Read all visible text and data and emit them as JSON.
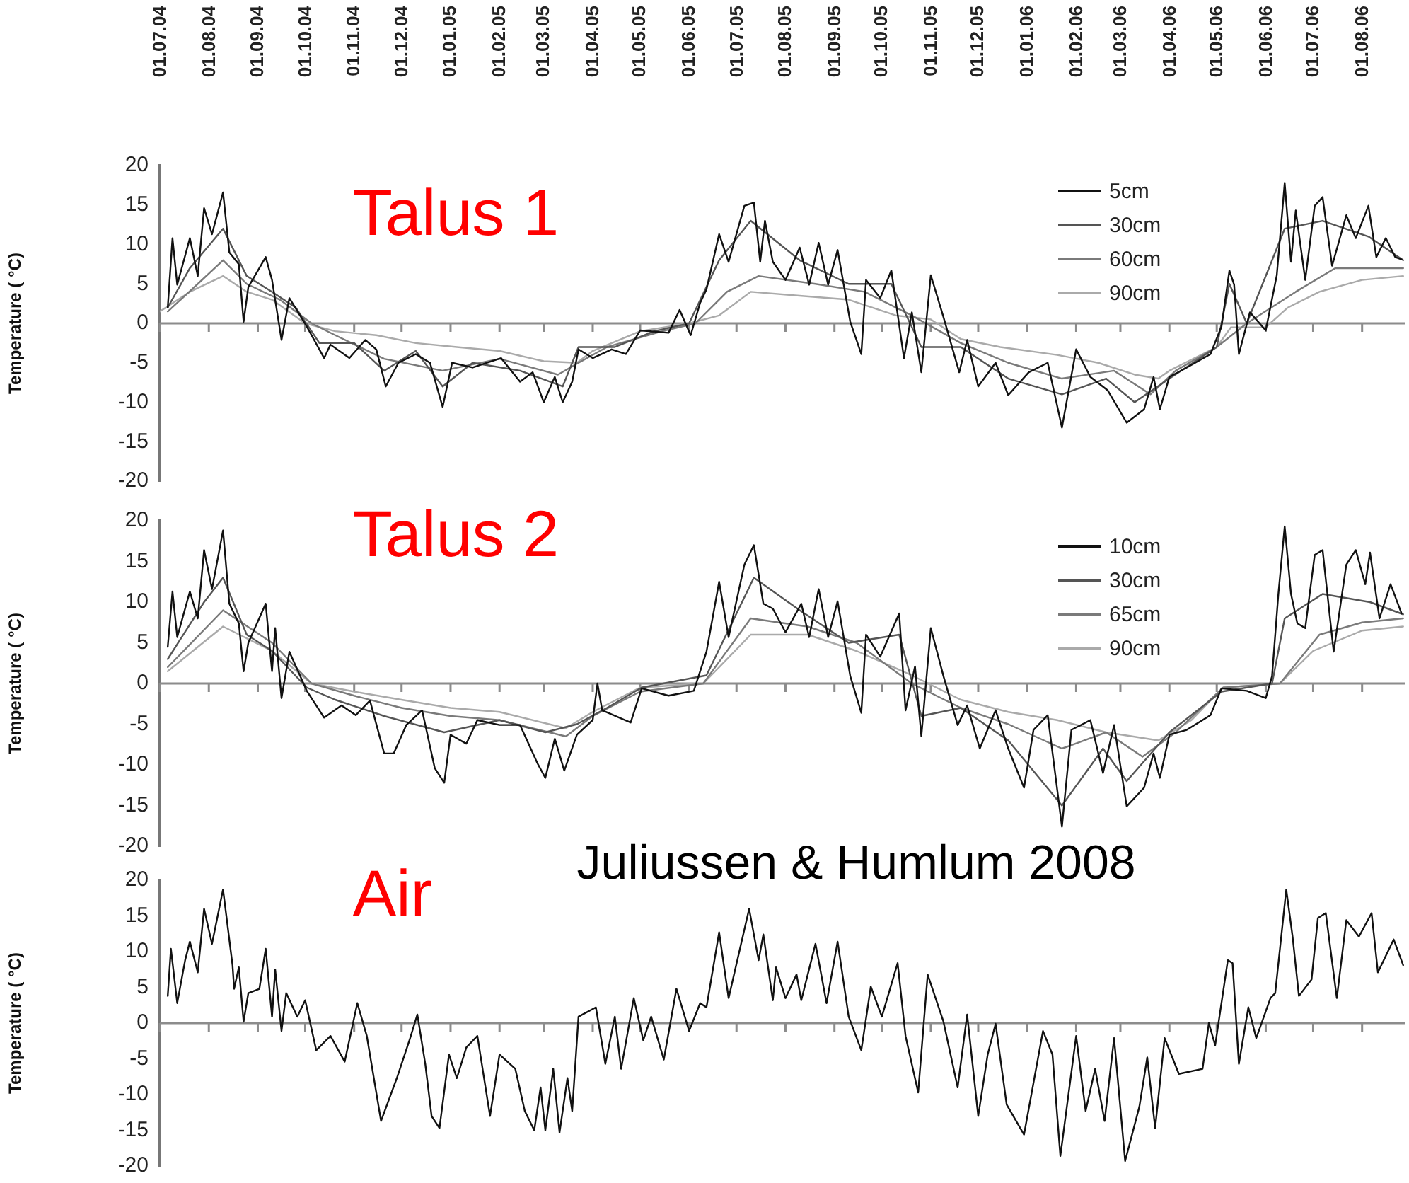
{
  "chart_data": [
    {
      "type": "line",
      "title": "Talus 1",
      "ylabel": "Temperature ( °C)",
      "xlim": [
        "2004-07-01",
        "2006-08-28"
      ],
      "ylim": [
        -20,
        20
      ],
      "yticks": [
        -20,
        -15,
        -10,
        -5,
        0,
        5,
        10,
        15,
        20
      ],
      "xticks": [
        {
          "value": "2004-07-01",
          "label": "01.07.04"
        },
        {
          "value": "2004-08-01",
          "label": "01.08.04"
        },
        {
          "value": "2004-09-01",
          "label": "01.09.04"
        },
        {
          "value": "2004-10-01",
          "label": "01.10.04"
        },
        {
          "value": "2004-11-01",
          "label": "01.11.04"
        },
        {
          "value": "2004-12-01",
          "label": "01.12.04"
        },
        {
          "value": "2005-01-01",
          "label": "01.01.05"
        },
        {
          "value": "2005-02-01",
          "label": "01.02.05"
        },
        {
          "value": "2005-03-01",
          "label": "01.03.05"
        },
        {
          "value": "2005-04-01",
          "label": "01.04.05"
        },
        {
          "value": "2005-05-01",
          "label": "01.05.05"
        },
        {
          "value": "2005-06-01",
          "label": "01.06.05"
        },
        {
          "value": "2005-07-01",
          "label": "01.07.05"
        },
        {
          "value": "2005-08-01",
          "label": "01.08.05"
        },
        {
          "value": "2005-09-01",
          "label": "01.09.05"
        },
        {
          "value": "2005-10-01",
          "label": "01.10.05"
        },
        {
          "value": "2005-11-01",
          "label": "01.11.05"
        },
        {
          "value": "2005-12-01",
          "label": "01.12.05"
        },
        {
          "value": "2006-01-01",
          "label": "01.01.06"
        },
        {
          "value": "2006-02-01",
          "label": "01.02.06"
        },
        {
          "value": "2006-03-01",
          "label": "01.03.06"
        },
        {
          "value": "2006-04-01",
          "label": "01.04.06"
        },
        {
          "value": "2006-05-01",
          "label": "01.05.06"
        },
        {
          "value": "2006-06-01",
          "label": "01.06.06"
        },
        {
          "value": "2006-07-01",
          "label": "01.07.06"
        },
        {
          "value": "2006-08-01",
          "label": "01.08.06"
        }
      ],
      "legend": "top right",
      "ref_lines": [
        {
          "axis": "y",
          "value": 0
        }
      ],
      "series": [
        {
          "name": "5cm",
          "color": "#111111",
          "x": [
            "2004-07-06",
            "2004-07-09",
            "2004-07-12",
            "2004-07-20",
            "2004-07-25",
            "2004-07-29",
            "2004-08-03",
            "2004-08-10",
            "2004-08-14",
            "2004-08-20",
            "2004-08-23",
            "2004-08-26",
            "2004-09-06",
            "2004-09-10",
            "2004-09-16",
            "2004-09-21",
            "2004-10-02",
            "2004-10-13",
            "2004-10-17",
            "2004-10-29",
            "2004-11-08",
            "2004-11-15",
            "2004-11-21",
            "2004-11-29",
            "2004-12-10",
            "2004-12-19",
            "2004-12-27",
            "2005-01-02",
            "2005-01-15",
            "2005-02-02",
            "2005-02-14",
            "2005-02-22",
            "2005-03-01",
            "2005-03-08",
            "2005-03-13",
            "2005-03-19",
            "2005-03-23",
            "2005-04-01",
            "2005-04-13",
            "2005-04-22",
            "2005-05-01",
            "2005-05-19",
            "2005-05-26",
            "2005-06-02",
            "2005-06-08",
            "2005-06-12",
            "2005-06-20",
            "2005-06-26",
            "2005-07-06",
            "2005-07-12",
            "2005-07-16",
            "2005-07-19",
            "2005-07-24",
            "2005-08-01",
            "2005-08-10",
            "2005-08-16",
            "2005-08-22",
            "2005-08-28",
            "2005-09-03",
            "2005-09-11",
            "2005-09-18",
            "2005-09-21",
            "2005-09-30",
            "2005-10-07",
            "2005-10-15",
            "2005-10-20",
            "2005-10-26",
            "2005-11-01",
            "2005-11-09",
            "2005-11-19",
            "2005-11-24",
            "2005-12-01",
            "2005-12-12",
            "2005-12-20",
            "2006-01-02",
            "2006-01-14",
            "2006-01-23",
            "2006-02-01",
            "2006-02-10",
            "2006-02-21",
            "2006-03-05",
            "2006-03-16",
            "2006-03-22",
            "2006-03-26",
            "2006-04-01",
            "2006-04-12",
            "2006-04-27",
            "2006-05-04",
            "2006-05-09",
            "2006-05-12",
            "2006-05-15",
            "2006-05-22",
            "2006-06-01",
            "2006-06-08",
            "2006-06-13",
            "2006-06-17",
            "2006-06-20",
            "2006-06-26",
            "2006-07-02",
            "2006-07-07",
            "2006-07-13",
            "2006-07-22",
            "2006-07-28",
            "2006-08-05",
            "2006-08-10",
            "2006-08-16",
            "2006-08-22",
            "2006-08-26"
          ],
          "values": [
            2,
            10.8,
            4.9,
            10.8,
            6,
            14.6,
            11.3,
            16.6,
            9,
            7.5,
            0.2,
            4.6,
            8.4,
            5.5,
            -2.1,
            3.2,
            -0.4,
            -4.4,
            -2.7,
            -4.4,
            -2.1,
            -3.3,
            -8,
            -5,
            -3.9,
            -5,
            -10.6,
            -5,
            -5.6,
            -4.4,
            -7.4,
            -6.2,
            -10,
            -6.8,
            -10,
            -7.4,
            -3.3,
            -4.4,
            -3.3,
            -3.9,
            -0.9,
            -1.2,
            1.7,
            -1.5,
            2.6,
            4.3,
            11.3,
            7.8,
            14.9,
            15.3,
            7.8,
            13,
            7.8,
            5.5,
            9.6,
            4.9,
            10.2,
            4.9,
            9.3,
            0.2,
            -3.9,
            5.5,
            3.2,
            6.7,
            -4.4,
            1.4,
            -6.2,
            6.1,
            0.8,
            -6.2,
            -2.1,
            -8,
            -5,
            -9.1,
            -6.2,
            -5,
            -13.2,
            -3.3,
            -6.8,
            -8.5,
            -12.6,
            -10.9,
            -6.8,
            -10.9,
            -6.8,
            -5.6,
            -3.9,
            -0.4,
            6.7,
            4.9,
            -3.9,
            1.4,
            -0.9,
            6.1,
            17.8,
            7.8,
            14.3,
            5.5,
            14.9,
            16,
            7.3,
            13.7,
            10.8,
            14.9,
            8.4,
            10.8,
            8.4,
            8.1
          ]
        },
        {
          "name": "30cm",
          "color": "#555555",
          "x": [
            "2004-07-06",
            "2004-07-20",
            "2004-08-10",
            "2004-08-25",
            "2004-09-10",
            "2004-09-25",
            "2004-10-10",
            "2004-11-01",
            "2004-11-20",
            "2004-12-10",
            "2004-12-27",
            "2005-01-15",
            "2005-02-14",
            "2005-03-13",
            "2005-03-23",
            "2005-04-15",
            "2005-05-10",
            "2005-06-01",
            "2005-06-20",
            "2005-07-10",
            "2005-08-10",
            "2005-09-10",
            "2005-10-07",
            "2005-10-26",
            "2005-11-20",
            "2005-12-20",
            "2006-01-23",
            "2006-02-20",
            "2006-03-10",
            "2006-04-01",
            "2006-05-01",
            "2006-05-09",
            "2006-05-20",
            "2006-06-13",
            "2006-07-07",
            "2006-08-05",
            "2006-08-27"
          ],
          "values": [
            2,
            7,
            12,
            6,
            4,
            2,
            -2.5,
            -2.5,
            -6,
            -3.5,
            -8,
            -5,
            -6,
            -8,
            -3,
            -3,
            -1,
            0,
            8,
            13,
            8,
            5,
            5,
            -3,
            -3,
            -7,
            -9,
            -7,
            -10,
            -7,
            -3,
            5,
            0,
            12,
            13,
            11,
            8
          ]
        },
        {
          "name": "60cm",
          "color": "#7a7a7a",
          "x": [
            "2004-07-06",
            "2004-07-25",
            "2004-08-10",
            "2004-08-25",
            "2004-09-15",
            "2004-10-05",
            "2004-10-20",
            "2004-11-20",
            "2004-12-27",
            "2005-02-01",
            "2005-03-10",
            "2005-03-23",
            "2005-04-10",
            "2005-05-15",
            "2005-06-05",
            "2005-06-25",
            "2005-07-15",
            "2005-08-20",
            "2005-09-20",
            "2005-10-20",
            "2005-11-20",
            "2005-12-20",
            "2006-01-23",
            "2006-02-25",
            "2006-03-20",
            "2006-04-05",
            "2006-05-01",
            "2006-05-20",
            "2006-06-20",
            "2006-07-15",
            "2006-08-27"
          ],
          "values": [
            1.5,
            5,
            8,
            5,
            3,
            0,
            -1.5,
            -4.5,
            -6,
            -4.5,
            -6.5,
            -5,
            -3,
            -1,
            0,
            4,
            6,
            5,
            4,
            1,
            -2.5,
            -5,
            -7,
            -6,
            -9,
            -6,
            -3,
            0,
            4,
            7,
            7
          ]
        },
        {
          "name": "90cm",
          "color": "#aaaaaa",
          "x": [
            "2004-07-01",
            "2004-07-20",
            "2004-08-10",
            "2004-08-25",
            "2004-09-10",
            "2004-10-01",
            "2004-10-20",
            "2004-11-15",
            "2004-12-10",
            "2005-01-05",
            "2005-02-01",
            "2005-03-01",
            "2005-03-22",
            "2005-04-01",
            "2005-05-01",
            "2005-06-01",
            "2005-06-20",
            "2005-07-10",
            "2005-08-10",
            "2005-09-10",
            "2005-10-10",
            "2005-11-01",
            "2005-11-20",
            "2005-12-15",
            "2006-01-20",
            "2006-02-15",
            "2006-03-10",
            "2006-03-25",
            "2006-04-01",
            "2006-05-01",
            "2006-05-10",
            "2006-06-01",
            "2006-06-15",
            "2006-07-05",
            "2006-08-01",
            "2006-08-27"
          ],
          "values": [
            1.5,
            4,
            6,
            4,
            3,
            0,
            -1,
            -1.5,
            -2.5,
            -3,
            -3.5,
            -4.8,
            -5,
            -3.5,
            -1,
            0,
            1,
            4,
            3.5,
            3,
            1,
            0.5,
            -2,
            -3,
            -4,
            -5,
            -6.5,
            -7,
            -6,
            -3,
            -0.5,
            -0.5,
            2,
            4,
            5.5,
            6
          ]
        }
      ]
    },
    {
      "type": "line",
      "title": "Talus 2",
      "ylabel": "Temperature ( °C)",
      "xlim": [
        "2004-07-01",
        "2006-08-28"
      ],
      "ylim": [
        -20,
        20
      ],
      "yticks": [
        -20,
        -15,
        -10,
        -5,
        0,
        5,
        10,
        15,
        20
      ],
      "xticks": [
        {
          "value": "2004-07-01",
          "label": null
        },
        {
          "value": "2004-08-01",
          "label": null
        },
        {
          "value": "2004-09-01",
          "label": null
        },
        {
          "value": "2004-10-01",
          "label": null
        },
        {
          "value": "2004-11-01",
          "label": null
        },
        {
          "value": "2004-12-01",
          "label": null
        },
        {
          "value": "2005-01-01",
          "label": null
        },
        {
          "value": "2005-02-01",
          "label": null
        },
        {
          "value": "2005-03-01",
          "label": null
        },
        {
          "value": "2005-04-01",
          "label": null
        },
        {
          "value": "2005-05-01",
          "label": null
        },
        {
          "value": "2005-06-01",
          "label": null
        },
        {
          "value": "2005-07-01",
          "label": null
        },
        {
          "value": "2005-08-01",
          "label": null
        },
        {
          "value": "2005-09-01",
          "label": null
        },
        {
          "value": "2005-10-01",
          "label": null
        },
        {
          "value": "2005-11-01",
          "label": null
        },
        {
          "value": "2005-12-01",
          "label": null
        },
        {
          "value": "2006-01-01",
          "label": null
        },
        {
          "value": "2006-02-01",
          "label": null
        },
        {
          "value": "2006-03-01",
          "label": null
        },
        {
          "value": "2006-04-01",
          "label": null
        },
        {
          "value": "2006-05-01",
          "label": null
        },
        {
          "value": "2006-06-01",
          "label": null
        },
        {
          "value": "2006-07-01",
          "label": null
        },
        {
          "value": "2006-08-01",
          "label": null
        }
      ],
      "tick_labels": "y",
      "legend": "top right",
      "ref_lines": [
        {
          "axis": "y",
          "value": 0
        }
      ],
      "series": [
        {
          "name": "10cm",
          "color": "#111111",
          "x": [
            "2004-07-06",
            "2004-07-09",
            "2004-07-12",
            "2004-07-20",
            "2004-07-25",
            "2004-07-29",
            "2004-08-03",
            "2004-08-10",
            "2004-08-14",
            "2004-08-20",
            "2004-08-23",
            "2004-08-26",
            "2004-09-06",
            "2004-09-10",
            "2004-09-12",
            "2004-09-16",
            "2004-09-21",
            "2004-10-02",
            "2004-10-13",
            "2004-10-24",
            "2004-11-02",
            "2004-11-11",
            "2004-11-20",
            "2004-11-26",
            "2004-12-04",
            "2004-12-14",
            "2004-12-22",
            "2004-12-28",
            "2005-01-01",
            "2005-01-11",
            "2005-01-18",
            "2005-02-01",
            "2005-02-14",
            "2005-02-25",
            "2005-03-02",
            "2005-03-08",
            "2005-03-14",
            "2005-03-22",
            "2005-04-01",
            "2005-04-04",
            "2005-04-07",
            "2005-04-25",
            "2005-05-02",
            "2005-05-19",
            "2005-06-04",
            "2005-06-12",
            "2005-06-20",
            "2005-06-26",
            "2005-07-06",
            "2005-07-12",
            "2005-07-18",
            "2005-07-24",
            "2005-08-01",
            "2005-08-11",
            "2005-08-16",
            "2005-08-22",
            "2005-08-28",
            "2005-09-03",
            "2005-09-11",
            "2005-09-18",
            "2005-09-21",
            "2005-09-30",
            "2005-10-12",
            "2005-10-16",
            "2005-10-22",
            "2005-10-26",
            "2005-11-01",
            "2005-11-09",
            "2005-11-18",
            "2005-11-24",
            "2005-12-02",
            "2005-12-12",
            "2005-12-20",
            "2005-12-30",
            "2006-01-05",
            "2006-01-14",
            "2006-01-23",
            "2006-01-29",
            "2006-02-10",
            "2006-02-18",
            "2006-02-25",
            "2006-03-05",
            "2006-03-16",
            "2006-03-22",
            "2006-03-26",
            "2006-04-01",
            "2006-04-12",
            "2006-04-27",
            "2006-05-04",
            "2006-05-20",
            "2006-06-01",
            "2006-06-05",
            "2006-06-09",
            "2006-06-13",
            "2006-06-17",
            "2006-06-21",
            "2006-06-26",
            "2006-07-02",
            "2006-07-07",
            "2006-07-14",
            "2006-07-22",
            "2006-07-28",
            "2006-08-03",
            "2006-08-06",
            "2006-08-12",
            "2006-08-19",
            "2006-08-26"
          ],
          "values": [
            4.5,
            11.3,
            5.7,
            11.3,
            8,
            16.4,
            11.6,
            18.8,
            9.8,
            7.4,
            1.5,
            5,
            9.8,
            1.5,
            6.8,
            -1.8,
            3.9,
            -0.9,
            -4.2,
            -2.7,
            -3.9,
            -2.1,
            -8.6,
            -8.6,
            -5.1,
            -3.3,
            -10.4,
            -12.2,
            -6.3,
            -7.4,
            -4.5,
            -5.1,
            -5.1,
            -9.8,
            -11.6,
            -6.8,
            -10.7,
            -6.3,
            -4.5,
            0,
            -3.3,
            -4.8,
            -0.6,
            -1.5,
            -0.9,
            3.9,
            12.5,
            5.7,
            14.6,
            17,
            9.8,
            9.2,
            6.3,
            9.8,
            5.7,
            11.6,
            5.7,
            10.1,
            0.9,
            -3.6,
            6,
            3.3,
            8.6,
            -3.3,
            2.1,
            -6.5,
            6.8,
            0.9,
            -5.1,
            -2.7,
            -8,
            -3.3,
            -8,
            -12.8,
            -5.7,
            -3.9,
            -17.6,
            -5.7,
            -4.5,
            -11,
            -5.1,
            -15.1,
            -12.8,
            -8.6,
            -11.6,
            -6.3,
            -5.7,
            -3.9,
            -0.6,
            -0.9,
            -1.8,
            0.9,
            11,
            19.3,
            11,
            7.4,
            6.8,
            15.8,
            16.4,
            3.9,
            14.6,
            16.4,
            12.2,
            16.1,
            8,
            12.2,
            8.6
          ]
        },
        {
          "name": "30cm",
          "color": "#555555",
          "x": [
            "2004-07-06",
            "2004-07-29",
            "2004-08-10",
            "2004-08-25",
            "2004-09-10",
            "2004-10-02",
            "2004-10-20",
            "2004-11-20",
            "2004-12-28",
            "2005-02-01",
            "2005-03-02",
            "2005-03-22",
            "2005-04-10",
            "2005-05-02",
            "2005-06-12",
            "2005-07-12",
            "2005-08-10",
            "2005-09-10",
            "2005-10-12",
            "2005-10-26",
            "2005-11-20",
            "2005-12-20",
            "2006-01-23",
            "2006-02-18",
            "2006-03-05",
            "2006-04-01",
            "2006-05-04",
            "2006-06-05",
            "2006-06-13",
            "2006-07-07",
            "2006-08-06",
            "2006-08-27"
          ],
          "values": [
            3,
            10,
            13,
            6,
            4,
            -0.5,
            -2,
            -4,
            -6,
            -4.5,
            -6,
            -5,
            -3,
            -0.5,
            1,
            13,
            9,
            5,
            6,
            -4,
            -3,
            -7,
            -15,
            -8,
            -12,
            -6,
            -1,
            0,
            8,
            11,
            10,
            8.5
          ]
        },
        {
          "name": "65cm",
          "color": "#7a7a7a",
          "x": [
            "2004-07-06",
            "2004-08-10",
            "2004-09-10",
            "2004-10-05",
            "2004-11-01",
            "2004-12-01",
            "2005-01-01",
            "2005-02-01",
            "2005-03-15",
            "2005-04-01",
            "2005-05-01",
            "2005-06-10",
            "2005-07-10",
            "2005-08-15",
            "2005-09-15",
            "2005-10-20",
            "2005-11-20",
            "2005-12-20",
            "2006-01-23",
            "2006-02-20",
            "2006-03-15",
            "2006-04-05",
            "2006-05-05",
            "2006-06-10",
            "2006-07-05",
            "2006-08-01",
            "2006-08-27"
          ],
          "values": [
            2,
            9,
            5,
            0,
            -1.5,
            -3,
            -4,
            -4.5,
            -6.5,
            -4,
            -1,
            0,
            8,
            7,
            5,
            0,
            -3,
            -5,
            -8,
            -6,
            -9,
            -6,
            -0.5,
            0,
            6,
            7.5,
            8
          ]
        },
        {
          "name": "90cm",
          "color": "#aaaaaa",
          "x": [
            "2004-07-06",
            "2004-08-10",
            "2004-09-10",
            "2004-10-05",
            "2004-11-01",
            "2004-12-01",
            "2005-01-01",
            "2005-02-01",
            "2005-03-15",
            "2005-04-01",
            "2005-05-01",
            "2005-06-10",
            "2005-07-10",
            "2005-08-15",
            "2005-09-15",
            "2005-10-20",
            "2005-11-20",
            "2005-12-20",
            "2006-01-20",
            "2006-02-20",
            "2006-03-25",
            "2006-04-15",
            "2006-05-05",
            "2006-06-10",
            "2006-07-01",
            "2006-08-01",
            "2006-08-27"
          ],
          "values": [
            1.5,
            7,
            4,
            0,
            -1,
            -2,
            -3,
            -3.5,
            -5.5,
            -3.5,
            -0.5,
            0,
            6,
            6,
            4,
            1,
            -2,
            -3.5,
            -4.5,
            -6,
            -7,
            -4.5,
            -0.5,
            0,
            4,
            6.5,
            7
          ]
        }
      ]
    },
    {
      "type": "line",
      "title": "Air",
      "ylabel": "Temperature ( °C)",
      "xlim": [
        "2004-07-01",
        "2006-08-28"
      ],
      "ylim": [
        -20,
        20
      ],
      "yticks": [
        -20,
        -15,
        -10,
        -5,
        0,
        5,
        10,
        15,
        20
      ],
      "xticks": [
        {
          "value": "2004-07-01",
          "label": null
        },
        {
          "value": "2004-08-01",
          "label": null
        },
        {
          "value": "2004-09-01",
          "label": null
        },
        {
          "value": "2004-10-01",
          "label": null
        },
        {
          "value": "2004-11-01",
          "label": null
        },
        {
          "value": "2004-12-01",
          "label": null
        },
        {
          "value": "2005-01-01",
          "label": null
        },
        {
          "value": "2005-02-01",
          "label": null
        },
        {
          "value": "2005-03-01",
          "label": null
        },
        {
          "value": "2005-04-01",
          "label": null
        },
        {
          "value": "2005-05-01",
          "label": null
        },
        {
          "value": "2005-06-01",
          "label": null
        },
        {
          "value": "2005-07-01",
          "label": null
        },
        {
          "value": "2005-08-01",
          "label": null
        },
        {
          "value": "2005-09-01",
          "label": null
        },
        {
          "value": "2005-10-01",
          "label": null
        },
        {
          "value": "2005-11-01",
          "label": null
        },
        {
          "value": "2005-12-01",
          "label": null
        },
        {
          "value": "2006-01-01",
          "label": null
        },
        {
          "value": "2006-02-01",
          "label": null
        },
        {
          "value": "2006-03-01",
          "label": null
        },
        {
          "value": "2006-04-01",
          "label": null
        },
        {
          "value": "2006-05-01",
          "label": null
        },
        {
          "value": "2006-06-01",
          "label": null
        },
        {
          "value": "2006-07-01",
          "label": null
        },
        {
          "value": "2006-08-01",
          "label": null
        }
      ],
      "tick_labels": "y",
      "ref_lines": [
        {
          "axis": "y",
          "value": 0
        }
      ],
      "annotations": [
        "Juliussen & Humlum 2008"
      ],
      "series": [
        {
          "color": "#111111",
          "x": [
            "2004-07-06",
            "2004-07-08",
            "2004-07-12",
            "2004-07-17",
            "2004-07-20",
            "2004-07-25",
            "2004-07-29",
            "2004-08-03",
            "2004-08-10",
            "2004-08-16",
            "2004-08-17",
            "2004-08-20",
            "2004-08-23",
            "2004-08-26",
            "2004-09-02",
            "2004-09-06",
            "2004-09-10",
            "2004-09-12",
            "2004-09-16",
            "2004-09-19",
            "2004-09-26",
            "2004-10-01",
            "2004-10-08",
            "2004-10-17",
            "2004-10-26",
            "2004-11-03",
            "2004-11-09",
            "2004-11-18",
            "2004-11-28",
            "2004-12-06",
            "2004-12-11",
            "2004-12-16",
            "2004-12-20",
            "2004-12-25",
            "2004-12-31",
            "2005-01-05",
            "2005-01-11",
            "2005-01-18",
            "2005-01-26",
            "2005-02-01",
            "2005-02-11",
            "2005-02-17",
            "2005-02-23",
            "2005-02-27",
            "2005-03-02",
            "2005-03-07",
            "2005-03-11",
            "2005-03-16",
            "2005-03-19",
            "2005-03-23",
            "2005-04-03",
            "2005-04-09",
            "2005-04-15",
            "2005-04-19",
            "2005-04-27",
            "2005-05-03",
            "2005-05-08",
            "2005-05-16",
            "2005-05-24",
            "2005-06-01",
            "2005-06-08",
            "2005-06-12",
            "2005-06-20",
            "2005-06-26",
            "2005-07-09",
            "2005-07-15",
            "2005-07-18",
            "2005-07-24",
            "2005-07-26",
            "2005-08-01",
            "2005-08-08",
            "2005-08-11",
            "2005-08-20",
            "2005-08-27",
            "2005-09-03",
            "2005-09-10",
            "2005-09-18",
            "2005-09-24",
            "2005-10-01",
            "2005-10-11",
            "2005-10-16",
            "2005-10-24",
            "2005-10-30",
            "2005-11-09",
            "2005-11-18",
            "2005-11-24",
            "2005-12-01",
            "2005-12-07",
            "2005-12-12",
            "2005-12-19",
            "2005-12-30",
            "2006-01-11",
            "2006-01-17",
            "2006-01-22",
            "2006-02-01",
            "2006-02-07",
            "2006-02-13",
            "2006-02-19",
            "2006-02-25",
            "2006-03-04",
            "2006-03-13",
            "2006-03-18",
            "2006-03-23",
            "2006-03-29",
            "2006-04-07",
            "2006-04-22",
            "2006-04-26",
            "2006-04-30",
            "2006-05-08",
            "2006-05-11",
            "2006-05-15",
            "2006-05-21",
            "2006-05-26",
            "2006-06-04",
            "2006-06-07",
            "2006-06-14",
            "2006-06-18",
            "2006-06-22",
            "2006-06-30",
            "2006-07-04",
            "2006-07-09",
            "2006-07-16",
            "2006-07-22",
            "2006-07-30",
            "2006-08-07",
            "2006-08-11",
            "2006-08-21",
            "2006-08-27"
          ],
          "values": [
            3.8,
            10.4,
            2.8,
            8.8,
            11.4,
            7.1,
            16,
            11.1,
            18.7,
            8.1,
            4.8,
            7.8,
            0.2,
            4.2,
            4.8,
            10.4,
            0.9,
            7.5,
            -1.1,
            4.2,
            0.9,
            3.2,
            -3.8,
            -1.8,
            -5.4,
            2.8,
            -1.8,
            -13.7,
            -7.7,
            -2.4,
            1.2,
            -5.7,
            -13,
            -14.7,
            -4.4,
            -7.7,
            -3.4,
            -1.8,
            -13,
            -4.4,
            -6.4,
            -12.3,
            -15,
            -9,
            -15,
            -6.4,
            -15.3,
            -7.7,
            -12.3,
            0.9,
            2.2,
            -5.7,
            0.9,
            -6.4,
            3.5,
            -2.4,
            0.9,
            -5.1,
            4.8,
            -1.1,
            2.8,
            2.2,
            12.7,
            3.5,
            16,
            8.8,
            12.4,
            3.2,
            7.8,
            3.5,
            6.8,
            3.2,
            11.1,
            2.8,
            11.4,
            0.9,
            -3.8,
            5.1,
            0.9,
            8.4,
            -1.8,
            -9.7,
            6.8,
            0.2,
            -9,
            1.2,
            -13,
            -4.4,
            -0.1,
            -11.4,
            -15.6,
            -1.1,
            -4.4,
            -18.6,
            -1.8,
            -12.3,
            -6.4,
            -13.7,
            -2.1,
            -19.3,
            -11.7,
            -4.8,
            -14.7,
            -2.1,
            -7.1,
            -6.4,
            0,
            -3.1,
            8.8,
            8.4,
            -5.7,
            2.2,
            -2.1,
            3.5,
            4.2,
            18.7,
            12.1,
            3.8,
            6.1,
            14.7,
            15.4,
            3.5,
            14.4,
            12.1,
            15.4,
            7.1,
            11.7,
            8.1
          ]
        }
      ]
    }
  ]
}
